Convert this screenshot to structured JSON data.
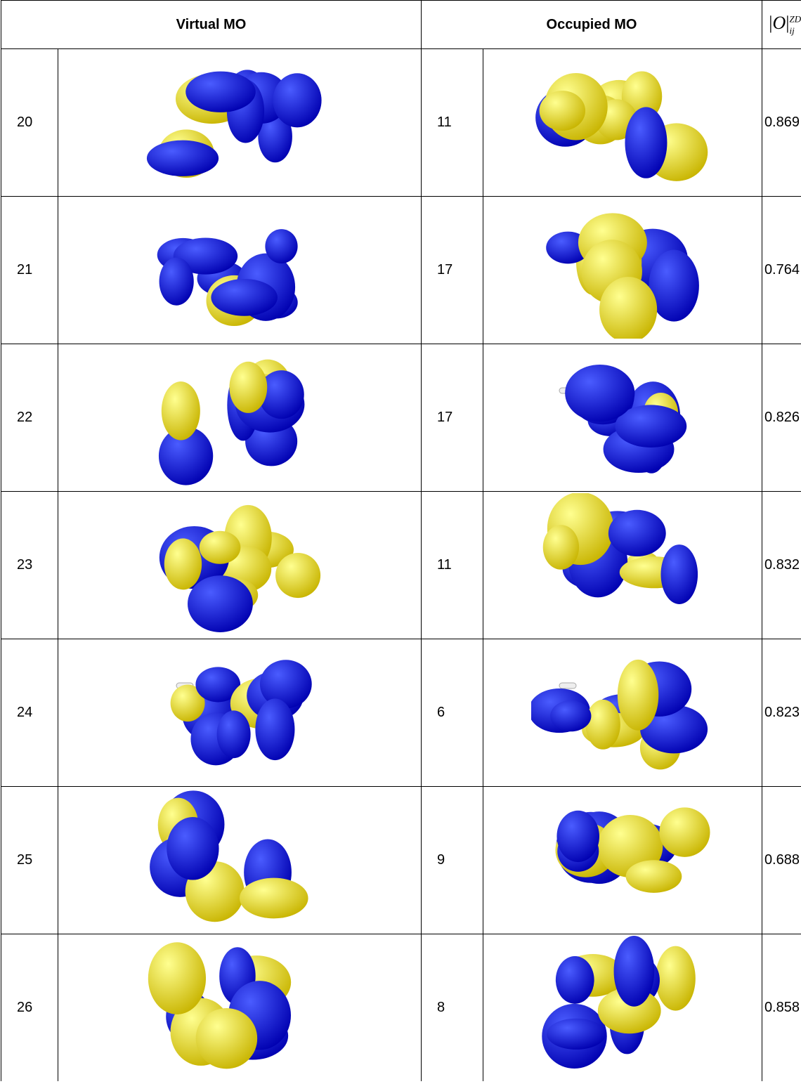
{
  "header": {
    "virtual": "Virtual MO",
    "occupied": "Occupied MO",
    "overlap": {
      "symbol": "O",
      "superscript": "ZDO",
      "subscript": "ij"
    }
  },
  "table": {
    "rows": [
      [
        20,
        11,
        0.869
      ],
      [
        21,
        17,
        0.764
      ],
      [
        22,
        17,
        0.826
      ],
      [
        23,
        11,
        0.832
      ],
      [
        24,
        6,
        0.823
      ],
      [
        25,
        9,
        0.688
      ],
      [
        26,
        8,
        0.858
      ]
    ]
  }
}
